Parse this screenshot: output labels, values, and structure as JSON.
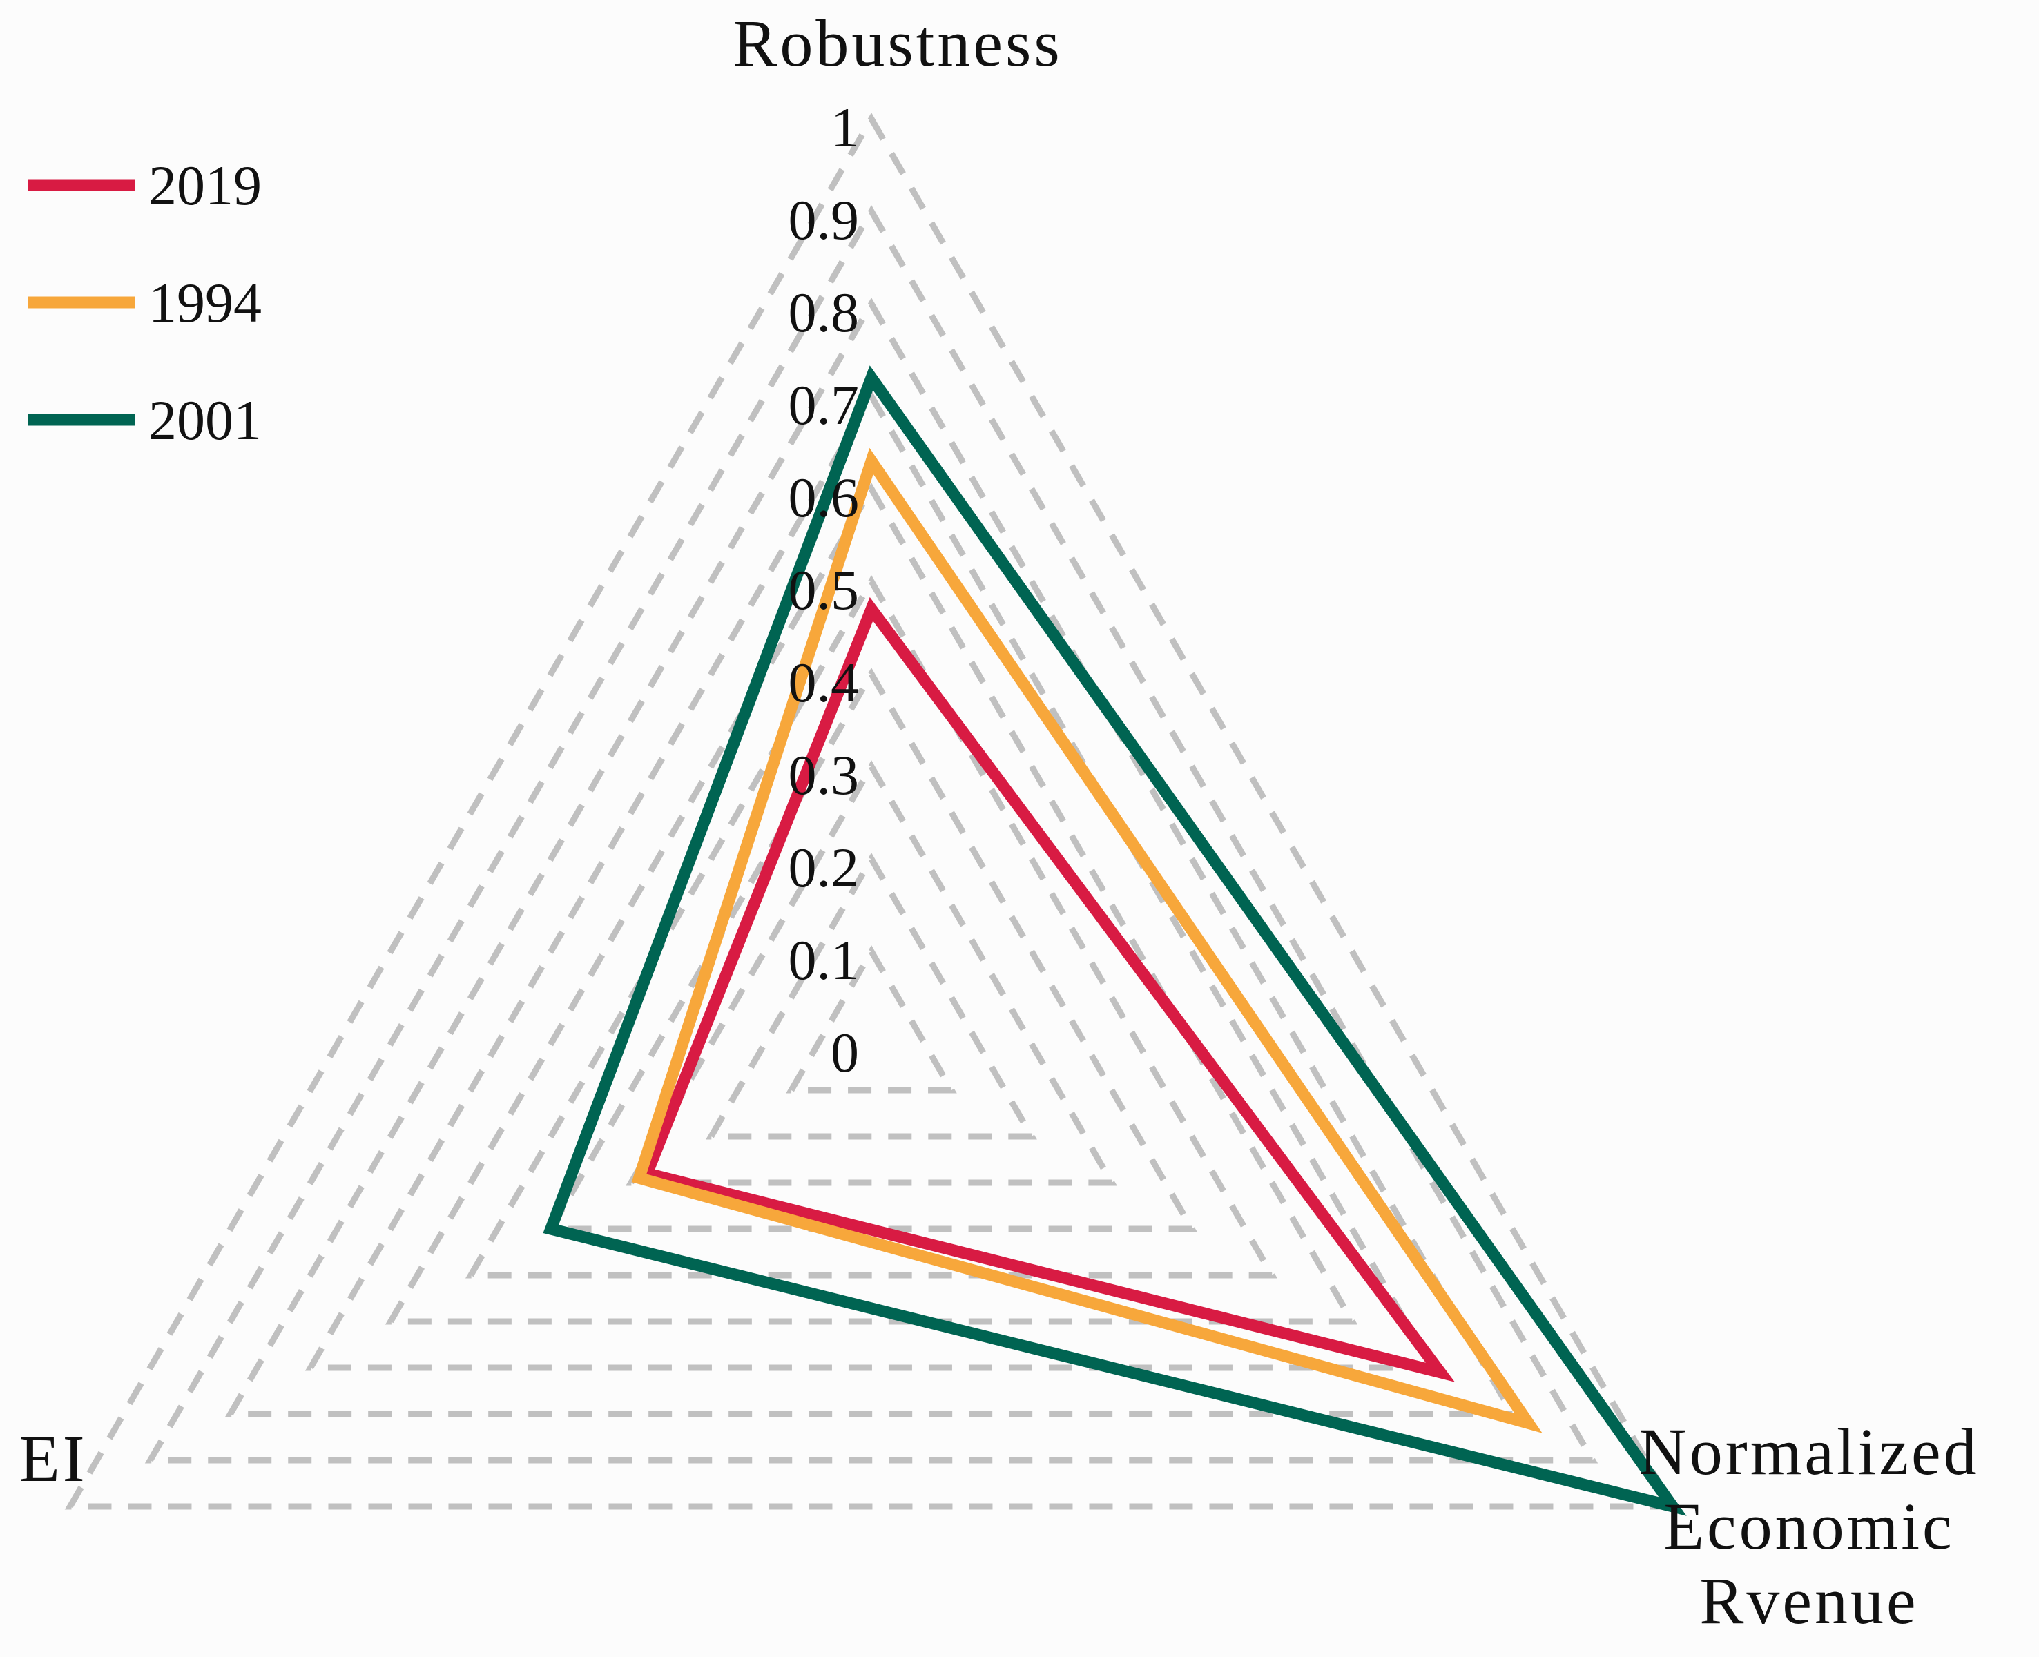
{
  "chart_data": {
    "type": "radar",
    "title": "",
    "axes": [
      "Robustness",
      "Normalized Economic Rvenue",
      "EI"
    ],
    "axis_label_lines": {
      "Robustness": [
        "Robustness"
      ],
      "Normalized Economic Rvenue": [
        "Normalized",
        "Economic",
        "Rvenue"
      ],
      "EI": [
        "EI"
      ]
    },
    "range": [
      0,
      1
    ],
    "ticks": [
      "0",
      "0.1",
      "0.2",
      "0.3",
      "0.4",
      "0.5",
      "0.6",
      "0.7",
      "0.8",
      "0.9",
      "1"
    ],
    "tick_values": [
      0,
      0.1,
      0.2,
      0.3,
      0.4,
      0.5,
      0.6,
      0.7,
      0.8,
      0.9,
      1
    ],
    "grid": "dashed",
    "legend_position": "top-left",
    "series": [
      {
        "name": "2019",
        "color": "#d81b43",
        "values": [
          0.47,
          0.71,
          0.28
        ]
      },
      {
        "name": "1994",
        "color": "#f7a73b",
        "values": [
          0.63,
          0.82,
          0.29
        ]
      },
      {
        "name": "2001",
        "color": "#006452",
        "values": [
          0.72,
          1.0,
          0.4
        ]
      }
    ]
  }
}
